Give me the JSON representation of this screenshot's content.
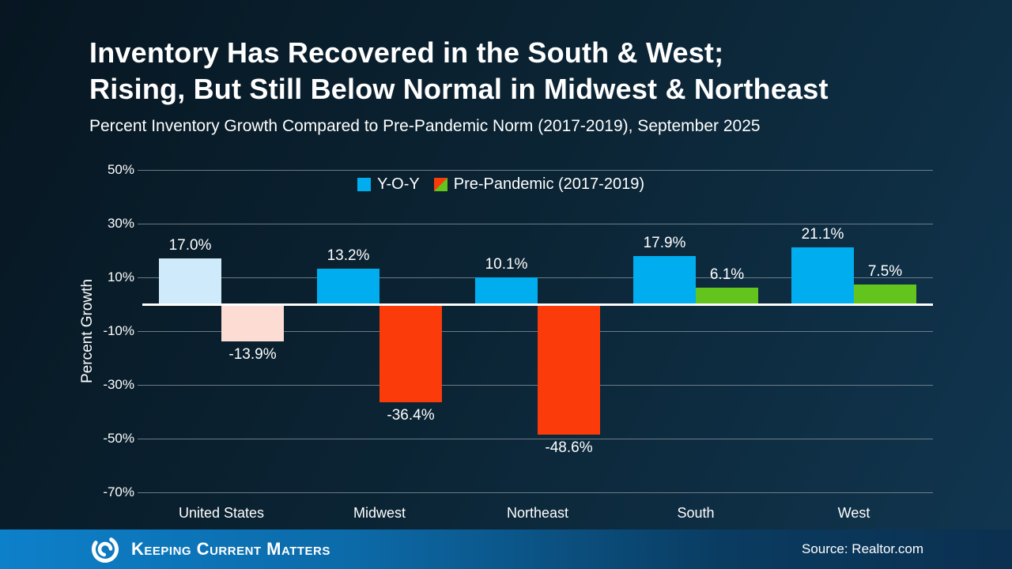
{
  "title": {
    "line1": "Inventory Has Recovered in the South & West;",
    "line2": "Rising, But Still Below Normal in Midwest & Northeast"
  },
  "subtitle": "Percent Inventory Growth Compared to Pre-Pandemic Norm (2017-2019), September 2025",
  "chart_data": {
    "type": "bar",
    "title": "Percent Inventory Growth Compared to Pre-Pandemic Norm (2017-2019), September 2025",
    "categories": [
      "United States",
      "Midwest",
      "Northeast",
      "South",
      "West"
    ],
    "series": [
      {
        "name": "Y-O-Y",
        "values": [
          17.0,
          13.2,
          10.1,
          17.9,
          21.1
        ]
      },
      {
        "name": "Pre-Pandemic (2017-2019)",
        "values": [
          -13.9,
          -36.4,
          -48.6,
          6.1,
          7.5
        ]
      }
    ],
    "bar_labels": [
      [
        "17.0%",
        "-13.9%"
      ],
      [
        "13.2%",
        "-36.4%"
      ],
      [
        "10.1%",
        "-48.6%"
      ],
      [
        "17.9%",
        "6.1%"
      ],
      [
        "21.1%",
        "7.5%"
      ]
    ],
    "bar_colors": [
      [
        "#cfeafa",
        "#fcdcd3"
      ],
      [
        "#00aeef",
        "#fb3b0a"
      ],
      [
        "#00aeef",
        "#fb3b0a"
      ],
      [
        "#00aeef",
        "#62c41d"
      ],
      [
        "#00aeef",
        "#62c41d"
      ]
    ],
    "ylabel": "Percent Growth",
    "xlabel": "",
    "ylim": [
      -70,
      50
    ],
    "yticks": [
      {
        "label": "50%",
        "value": 50
      },
      {
        "label": "30%",
        "value": 30
      },
      {
        "label": "10%",
        "value": 10
      },
      {
        "label": "-10%",
        "value": -10
      },
      {
        "label": "-30%",
        "value": -30
      },
      {
        "label": "-50%",
        "value": -50
      },
      {
        "label": "-70%",
        "value": -70
      }
    ],
    "grid": true,
    "legend_position": "top-center",
    "legend": [
      {
        "label": "Y-O-Y",
        "swatch": "solid",
        "color": "#00aeef"
      },
      {
        "label": "Pre-Pandemic (2017-2019)",
        "swatch": "split-diagonal",
        "colors": [
          "#fb3b0a",
          "#62c41d"
        ]
      }
    ]
  },
  "footer": {
    "brand": "Keeping Current Matters",
    "source": "Source: Realtor.com"
  },
  "colors": {
    "grid": "#7e8b95",
    "zero_line": "#ffffff",
    "bar_blue": "#00aeef",
    "bar_red": "#fb3b0a",
    "bar_green": "#62c41d",
    "us_bar_blue": "#cfeafa",
    "us_bar_pink": "#fcdcd3",
    "footer_left": "#0d80ca",
    "footer_right": "#0b3050"
  }
}
